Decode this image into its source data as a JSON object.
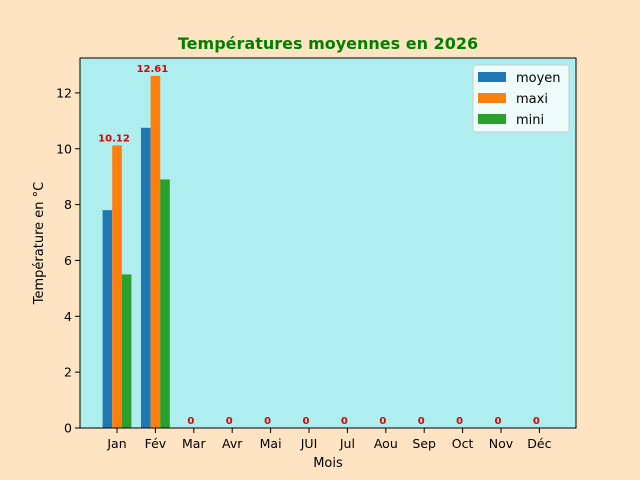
{
  "chart_data": {
    "type": "bar",
    "title": "Températures moyennes en 2026",
    "xlabel": "Mois",
    "ylabel": "Température en °C",
    "categories": [
      "Jan",
      "Fév",
      "Mar",
      "Avr",
      "Mai",
      "JUI",
      "Jul",
      "Aou",
      "Sep",
      "Oct",
      "Nov",
      "Déc"
    ],
    "series": [
      {
        "name": "moyen",
        "color": "#1f77b4",
        "values": [
          7.8,
          10.75,
          0,
          0,
          0,
          0,
          0,
          0,
          0,
          0,
          0,
          0
        ]
      },
      {
        "name": "maxi",
        "color": "#ff7f0e",
        "values": [
          10.12,
          12.61,
          0,
          0,
          0,
          0,
          0,
          0,
          0,
          0,
          0,
          0
        ]
      },
      {
        "name": "mini",
        "color": "#2ca02c",
        "values": [
          5.5,
          8.9,
          0,
          0,
          0,
          0,
          0,
          0,
          0,
          0,
          0,
          0
        ]
      }
    ],
    "data_labels": [
      "10.12",
      "12.61",
      "0",
      "0",
      "0",
      "0",
      "0",
      "0",
      "0",
      "0",
      "0",
      "0"
    ],
    "ylim": [
      0,
      13.25
    ],
    "yticks": [
      0,
      2,
      4,
      6,
      8,
      10,
      12
    ],
    "grid": false,
    "legend_position": "top-right",
    "plot_background": "#afeeee",
    "title_color": "#008000",
    "label_color": "#e00000"
  }
}
